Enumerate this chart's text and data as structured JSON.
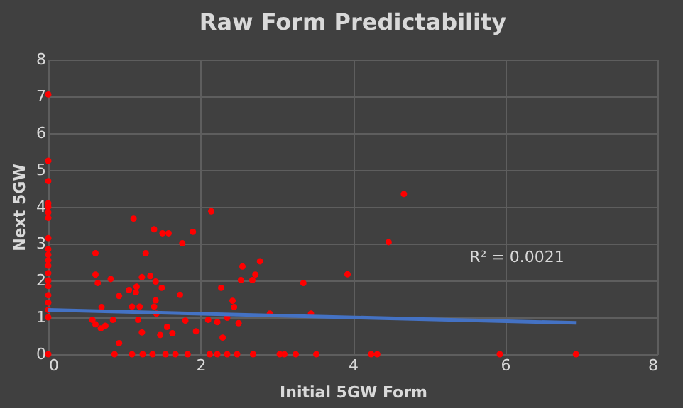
{
  "chart_data": {
    "type": "scatter",
    "title": "Raw Form Predictability",
    "xlabel": "Initial 5GW Form",
    "ylabel": "Next 5GW",
    "xlim": [
      0,
      8
    ],
    "xticks": [
      0,
      2,
      4,
      6,
      8
    ],
    "ylim": [
      0,
      8
    ],
    "yticks": [
      0,
      1,
      2,
      3,
      4,
      5,
      6,
      7,
      8
    ],
    "grid": true,
    "series": [
      {
        "type": "scatter",
        "marker": "circle",
        "color": "#ff0000",
        "x": [
          0,
          0,
          0,
          0,
          0,
          0,
          0,
          0,
          0,
          0,
          0,
          0,
          0,
          0,
          0,
          0,
          0,
          0,
          0,
          0,
          0.62,
          0.62,
          0.65,
          0.82,
          0.58,
          0.62,
          0.69,
          0.75,
          0.7,
          0.85,
          0.93,
          0.93,
          0.87,
          1.06,
          1.15,
          1.16,
          1.12,
          1.1,
          1.2,
          1.18,
          1.23,
          1.23,
          1.28,
          1.34,
          1.39,
          1.39,
          1.41,
          1.41,
          1.42,
          1.47,
          1.5,
          1.58,
          1.49,
          1.56,
          1.63,
          1.73,
          1.76,
          1.8,
          1.9,
          1.94,
          1.1,
          1.24,
          1.37,
          1.54,
          1.67,
          1.83,
          2.14,
          2.1,
          2.22,
          2.27,
          2.29,
          2.35,
          2.42,
          2.44,
          2.5,
          2.53,
          2.55,
          2.68,
          2.72,
          2.78,
          2.91,
          3.35,
          3.45,
          2.12,
          2.22,
          2.35,
          2.48,
          2.69,
          3.04,
          3.1,
          3.25,
          3.52,
          4.67,
          4.47,
          3.93,
          4.24,
          4.32,
          5.93,
          6.93
        ],
        "values": [
          7.05,
          5.25,
          4.7,
          4.1,
          4.0,
          3.85,
          3.7,
          3.15,
          2.85,
          2.7,
          2.55,
          2.4,
          2.2,
          2.0,
          1.85,
          1.6,
          1.4,
          1.2,
          1.0,
          0,
          2.74,
          2.16,
          1.93,
          2.04,
          0.93,
          0.81,
          0.7,
          0.77,
          1.28,
          0.93,
          1.58,
          0.3,
          0,
          1.74,
          1.68,
          1.83,
          3.68,
          1.29,
          1.29,
          0.93,
          0.59,
          2.09,
          2.74,
          2.12,
          3.39,
          1.29,
          1.97,
          1.46,
          1.1,
          0.52,
          3.28,
          3.28,
          1.8,
          0.74,
          0.57,
          1.61,
          3.01,
          0.91,
          3.32,
          0.62,
          0,
          0,
          0,
          0,
          0,
          0,
          3.88,
          0.93,
          0.87,
          1.8,
          0.45,
          0.99,
          1.45,
          1.28,
          0.84,
          2.01,
          2.38,
          2.01,
          2.16,
          2.52,
          1.1,
          1.93,
          1.1,
          0,
          0,
          0,
          0,
          0,
          0,
          0,
          0,
          0,
          4.35,
          3.04,
          2.17,
          0,
          0,
          0,
          0
        ]
      },
      {
        "type": "line",
        "line_style": "solid",
        "color": "#4472c4",
        "x": [
          0,
          6.93
        ],
        "values": [
          1.2,
          0.85
        ]
      }
    ],
    "annotations": [
      "R² = 0.0021"
    ]
  }
}
